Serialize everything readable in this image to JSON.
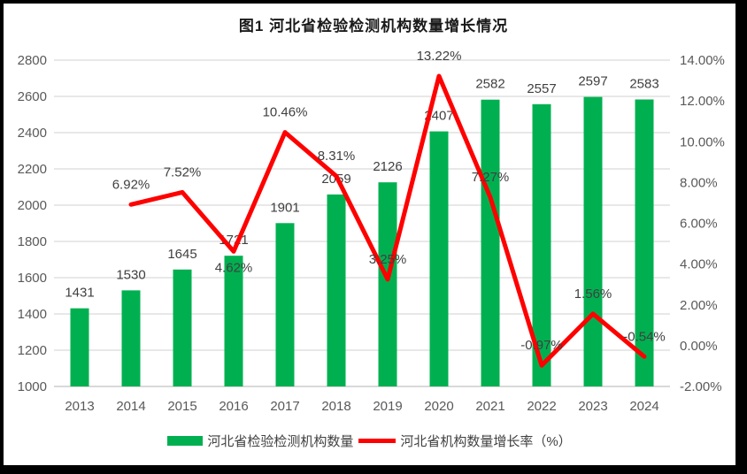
{
  "chart_data": {
    "type": "bar+line",
    "title": "图1  河北省检验检测机构数量增长情况",
    "categories": [
      "2013",
      "2014",
      "2015",
      "2016",
      "2017",
      "2018",
      "2019",
      "2020",
      "2021",
      "2022",
      "2023",
      "2024"
    ],
    "series": [
      {
        "name": "河北省检验检测机构数量",
        "type": "bar",
        "axis": "left",
        "color": "#00B050",
        "values": [
          1431,
          1530,
          1645,
          1721,
          1901,
          2059,
          2126,
          2407,
          2582,
          2557,
          2597,
          2583
        ]
      },
      {
        "name": "河北省机构数量增长率（%）",
        "type": "line",
        "axis": "right",
        "color": "#FF0000",
        "values": [
          null,
          6.92,
          7.52,
          4.62,
          10.46,
          8.31,
          3.25,
          13.22,
          7.27,
          -0.97,
          1.56,
          -0.54
        ],
        "point_labels": [
          "",
          "6.92%",
          "7.52%",
          "4.62%",
          "10.46%",
          "8.31%",
          "3.25%",
          "13.22%",
          "7.27%",
          "-0.97%",
          "1.56%",
          "-0.54%"
        ],
        "label_positions": [
          "",
          "above",
          "above",
          "below",
          "above",
          "above",
          "above",
          "above",
          "above",
          "above",
          "above",
          "above"
        ]
      }
    ],
    "left_axis": {
      "min": 1000,
      "max": 2800,
      "step": 200,
      "tick_labels": [
        "2800",
        "2600",
        "2400",
        "2200",
        "2000",
        "1800",
        "1600",
        "1400",
        "1200",
        "1000"
      ]
    },
    "right_axis": {
      "min": -2,
      "max": 14,
      "step": 2,
      "tick_labels": [
        "14.00%",
        "12.00%",
        "10.00%",
        "8.00%",
        "6.00%",
        "4.00%",
        "2.00%",
        "0.00%",
        "-2.00%"
      ]
    },
    "grid": true,
    "legend_position": "bottom",
    "colors": {
      "grid": "#D9D9D9",
      "axis_text": "#595959",
      "label_text": "#404040",
      "background": "#FFFFFF",
      "frame": "#000000"
    }
  }
}
